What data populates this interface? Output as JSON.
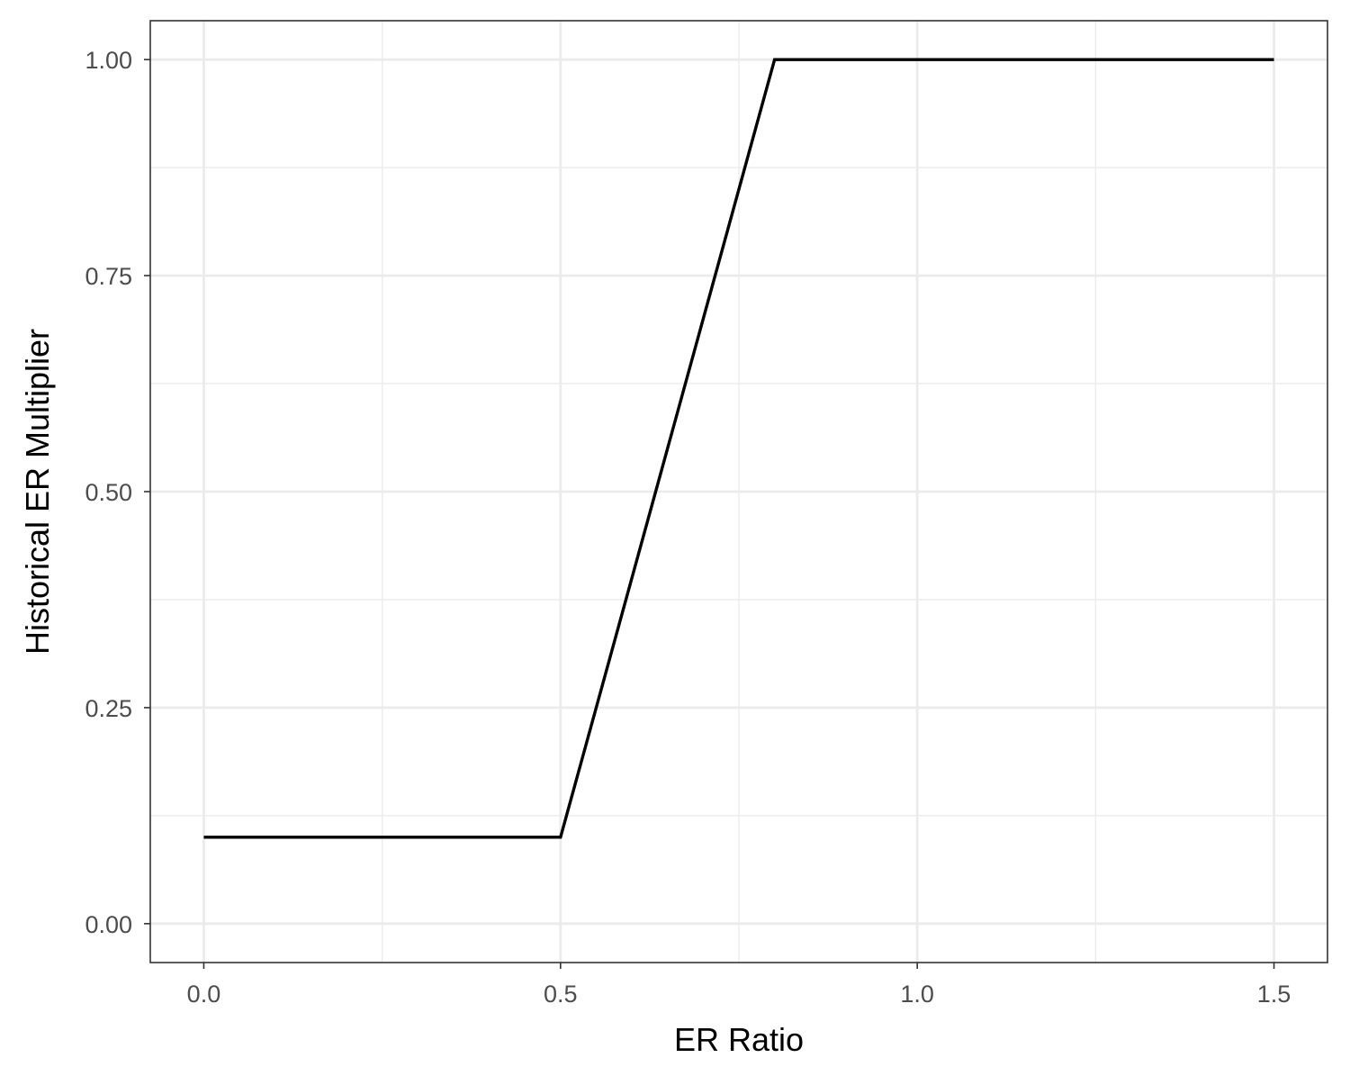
{
  "chart_data": {
    "type": "line",
    "title": "",
    "xlabel": "ER Ratio",
    "ylabel": "Historical ER Multiplier",
    "xlim": [
      -0.075,
      1.575
    ],
    "ylim": [
      -0.045,
      1.045
    ],
    "x_ticks": [
      0.0,
      0.5,
      1.0,
      1.5
    ],
    "x_tick_labels": [
      "0.0",
      "0.5",
      "1.0",
      "1.5"
    ],
    "x_minor_ticks": [
      0.25,
      0.75,
      1.25
    ],
    "y_ticks": [
      0.0,
      0.25,
      0.5,
      0.75,
      1.0
    ],
    "y_tick_labels": [
      "0.00",
      "0.25",
      "0.50",
      "0.75",
      "1.00"
    ],
    "y_minor_ticks": [
      0.125,
      0.375,
      0.625,
      0.875
    ],
    "grid": true,
    "legend": "none",
    "series": [
      {
        "x": [
          0.0,
          0.5,
          0.8,
          1.5
        ],
        "y": [
          0.1,
          0.1,
          1.0,
          1.0
        ],
        "color": "#000000"
      }
    ]
  }
}
